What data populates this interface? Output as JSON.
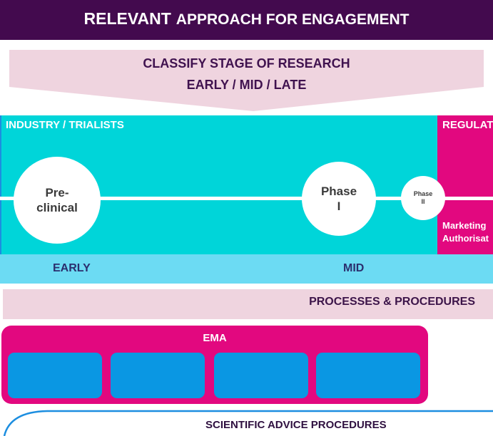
{
  "title": {
    "part1": "RELEVANT",
    "part2": "APPROACH FOR ENGAGEMENT"
  },
  "classify": {
    "line1": "CLASSIFY STAGE OF RESEARCH",
    "line2": "EARLY / MID / LATE"
  },
  "industry": {
    "label": "INDUSTRY / TRIALISTS"
  },
  "regulator": {
    "label": "REGULAT",
    "marketing_line1": "Marketing",
    "marketing_line2": "Authorisat"
  },
  "phases": [
    {
      "label": "Pre-\nclinical"
    },
    {
      "label": "Phase\nI"
    },
    {
      "label": "Phase\nII"
    }
  ],
  "stages": {
    "early": "EARLY",
    "mid": "MID"
  },
  "processes": {
    "label": "PROCESSES & PROCEDURES"
  },
  "ema": {
    "label": "EMA"
  },
  "scientific_advice": {
    "label": "SCIENTIFIC ADVICE PROCEDURES"
  },
  "colors": {
    "title_bg": "#430a4e",
    "industry": "#00d5d9",
    "regulator": "#e2087f",
    "stage_bar": "#6cdbf3",
    "processes_bar": "#efd4df",
    "ema_box": "#0a97e3",
    "sa_curve": "#1c8ee0"
  }
}
